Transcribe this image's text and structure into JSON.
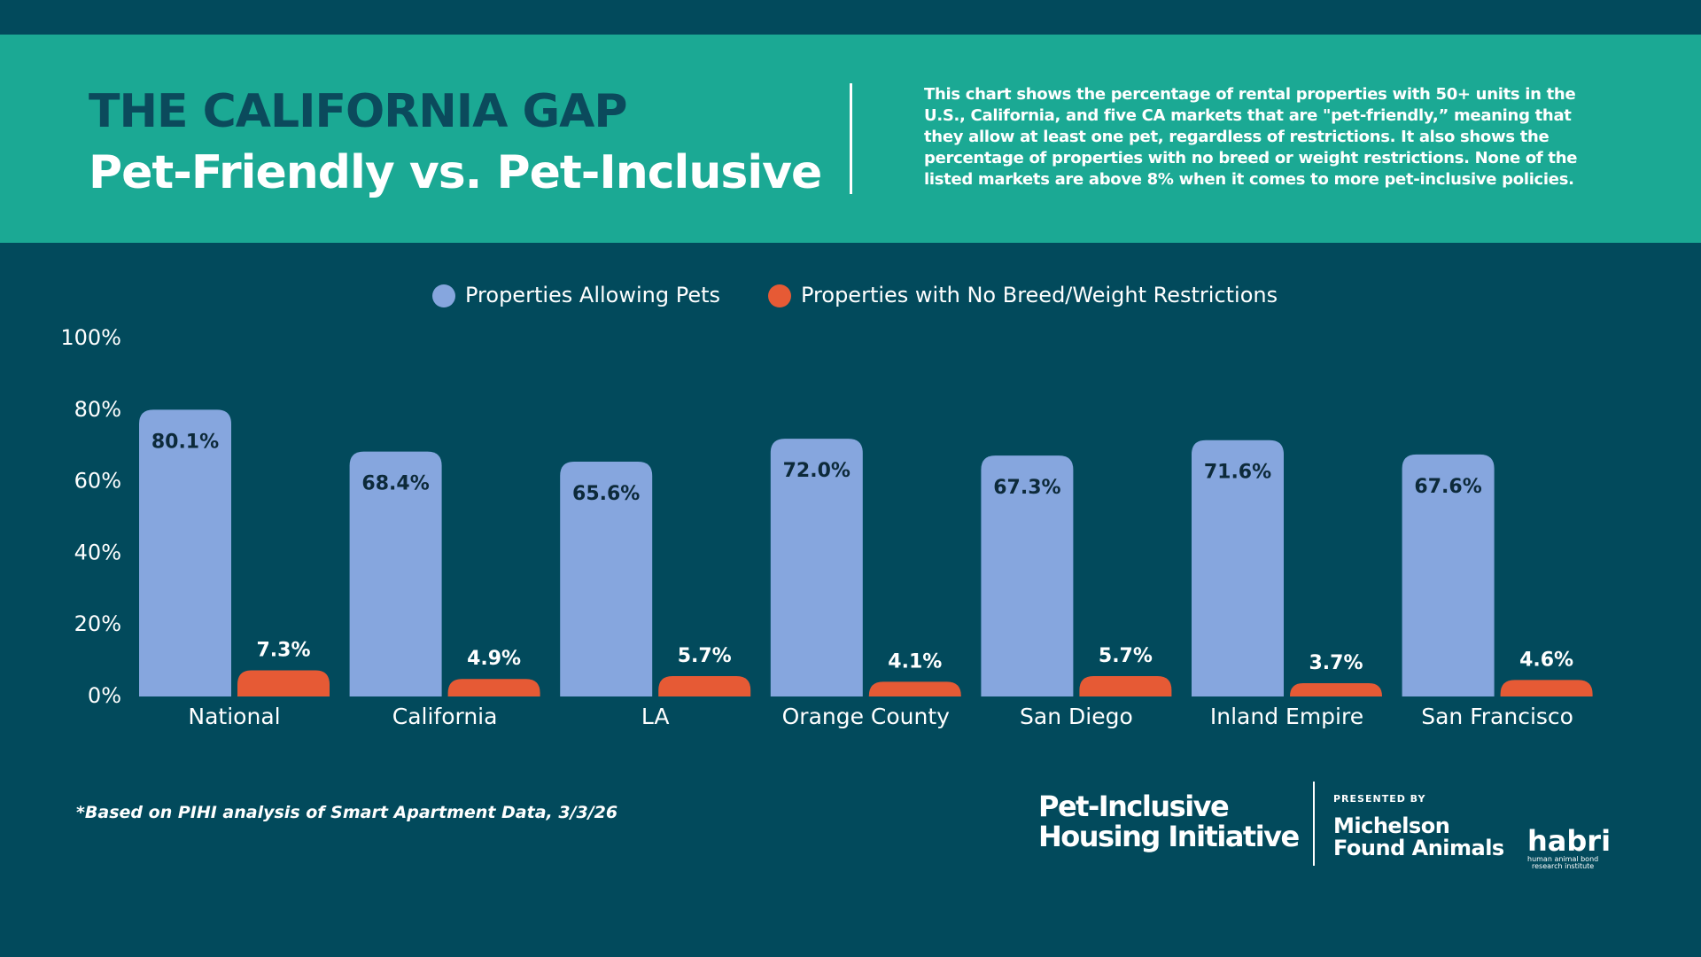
{
  "chart_data": {
    "type": "bar",
    "title": "THE CALIFORNIA GAP",
    "subtitle": "Pet-Friendly vs. Pet-Inclusive",
    "description": [
      "This chart shows the percentage of rental properties with 50+ units in the",
      "U.S., California, and five CA markets that are \"pet-friendly,” meaning that",
      "they allow at least one pet, regardless of restrictions. It also shows the",
      "percentage of properties with no breed or weight restrictions. None of the",
      "listed markets are above 8% when it comes to more pet-inclusive policies."
    ],
    "categories": [
      "National",
      "California",
      "LA",
      "Orange County",
      "San Diego",
      "Inland Empire",
      "San Francisco"
    ],
    "series": [
      {
        "name": "Properties Allowing Pets",
        "color": "#86a6de",
        "values": [
          80.1,
          68.4,
          65.6,
          72.0,
          67.3,
          71.6,
          67.6
        ],
        "value_labels": [
          "80.1%",
          "68.4%",
          "65.6%",
          "72.0%",
          "67.3%",
          "71.6%",
          "67.6%"
        ]
      },
      {
        "name": "Properties with No Breed/Weight Restrictions",
        "color": "#e65a35",
        "values": [
          7.3,
          4.9,
          5.7,
          4.1,
          5.7,
          3.7,
          4.6
        ],
        "value_labels": [
          "7.3%",
          "4.9%",
          "5.7%",
          "4.1%",
          "5.7%",
          "3.7%",
          "4.6%"
        ]
      }
    ],
    "ylim": [
      0,
      100
    ],
    "yticks": [
      {
        "value": 0,
        "label": "0%"
      },
      {
        "value": 20,
        "label": "20%"
      },
      {
        "value": 40,
        "label": "40%"
      },
      {
        "value": 60,
        "label": "60%"
      },
      {
        "value": 80,
        "label": "80%"
      },
      {
        "value": 100,
        "label": "100%"
      }
    ],
    "grid": false,
    "legend": "top",
    "footnote": "*Based on PIHI analysis of Smart Apartment Data, 3/3/26"
  },
  "branding": {
    "pihi": [
      "Pet-Inclusive",
      "Housing Initiative"
    ],
    "presented_by": "PRESENTED BY",
    "michelson": [
      "Michelson",
      "Found Animals"
    ],
    "habri": "habri",
    "habri_tagline": [
      "human animal bond",
      "research institute"
    ]
  }
}
